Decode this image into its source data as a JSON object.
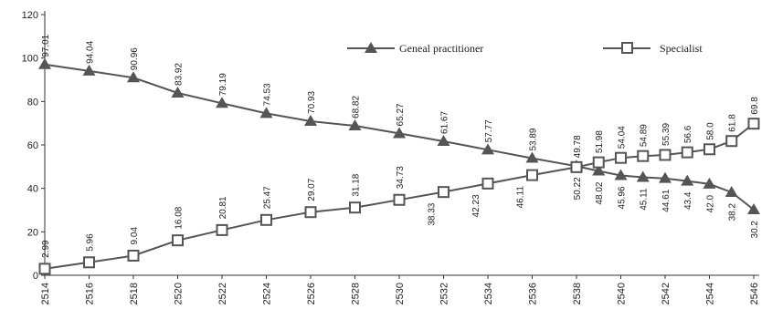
{
  "chart_data": {
    "type": "line",
    "x": [
      2514,
      2516,
      2518,
      2520,
      2522,
      2524,
      2526,
      2528,
      2530,
      2532,
      2534,
      2536,
      2538,
      2539,
      2540,
      2541,
      2542,
      2543,
      2544,
      2545,
      2546
    ],
    "xticks": [
      "2514",
      "2516",
      "2518",
      "2520",
      "2522",
      "2524",
      "2526",
      "2528",
      "2530",
      "2532",
      "2534",
      "2536",
      "2538",
      "2540",
      "2542",
      "2544",
      "2546"
    ],
    "ylim": [
      0,
      120
    ],
    "yticks": [
      0,
      20,
      40,
      60,
      80,
      100,
      120
    ],
    "series": [
      {
        "name": "Geneal practitioner",
        "marker": "triangle",
        "color": "#555555",
        "values": [
          97.01,
          94.04,
          90.96,
          83.92,
          79.19,
          74.53,
          70.93,
          68.82,
          65.27,
          61.67,
          57.77,
          53.89,
          50.22,
          48.02,
          45.96,
          45.11,
          44.61,
          43.4,
          42.0,
          38.2,
          30.2
        ],
        "labels": [
          "97.01",
          "94.04",
          "90.96",
          "83.92",
          "79.19",
          "74.53",
          "70.93",
          "68.82",
          "65.27",
          "61.67",
          "57.77",
          "53.89",
          "50.22",
          "48.02",
          "45.96",
          "45.11",
          "44.61",
          "43.4",
          "42.0",
          "38.2",
          "30.2"
        ]
      },
      {
        "name": "Specialist",
        "marker": "square",
        "color": "#555555",
        "values": [
          2.99,
          5.96,
          9.04,
          16.08,
          20.81,
          25.47,
          29.07,
          31.18,
          34.73,
          38.33,
          42.23,
          46.11,
          49.78,
          51.98,
          54.04,
          54.89,
          55.39,
          56.6,
          58.0,
          61.8,
          69.8
        ],
        "labels": [
          "2.99",
          "5.96",
          "9.04",
          "16.08",
          "20.81",
          "25.47",
          "29.07",
          "31.18",
          "34.73",
          "38.33",
          "42.23",
          "46.11",
          "49.78",
          "51.98",
          "54.04",
          "54.89",
          "55.39",
          "56.6",
          "58.0",
          "61.8",
          "69.8"
        ]
      }
    ],
    "legend": "top-right",
    "grid": false
  }
}
